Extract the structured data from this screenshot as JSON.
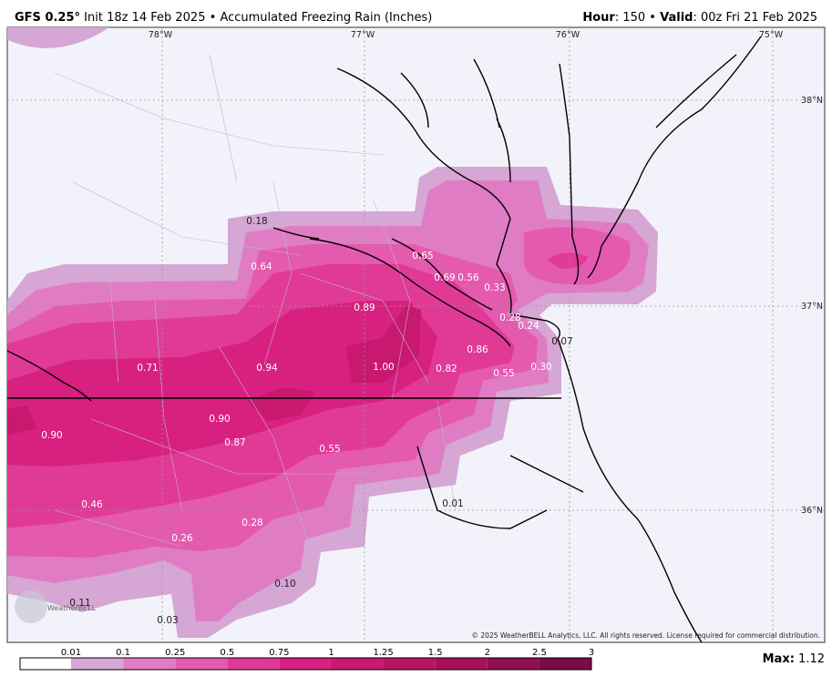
{
  "header": {
    "model": "GFS 0.25°",
    "init": "Init 18z 14 Feb 2025",
    "separator": "•",
    "product": "Accumulated Freezing Rain (Inches)",
    "hour_label": "Hour",
    "hour_value": ": 150",
    "valid_label": "Valid",
    "valid_value": ": 00z Fri 21 Feb 2025"
  },
  "longitude_labels": [
    "78°W",
    "77°W",
    "76°W",
    "75°W"
  ],
  "latitude_labels": [
    "38°N",
    "37°N",
    "36°N"
  ],
  "map_labels": [
    "0.18",
    "0.65",
    "0.64",
    "0.69",
    "0.56",
    "0.33",
    "0.89",
    "0.28",
    "0.24",
    "0.07",
    "0.86",
    "0.71",
    "0.94",
    "1.00",
    "0.82",
    "0.55",
    "0.30",
    "0.90",
    "0.90",
    "0.87",
    "0.55",
    "0.01",
    "0.46",
    "0.28",
    "0.26",
    "0.10",
    "0.11",
    "0.03"
  ],
  "copyright": "© 2025 WeatherBELL Analytics, LLC. All rights reserved. License required for commercial distribution.",
  "logo": "WeatherBELL",
  "colorbar": {
    "labels": [
      "0.01",
      "0.1",
      "0.25",
      "0.5",
      "0.75",
      "1",
      "1.25",
      "1.5",
      "2",
      "2.5",
      "3"
    ],
    "colors": [
      "#ffffff",
      "#d6a6d4",
      "#e07cc4",
      "#e45aae",
      "#e03a96",
      "#d82080",
      "#c81870",
      "#b81464",
      "#a8105a",
      "#901050",
      "#780c44"
    ]
  },
  "max": {
    "label": "Max:",
    "value": "1.12"
  }
}
